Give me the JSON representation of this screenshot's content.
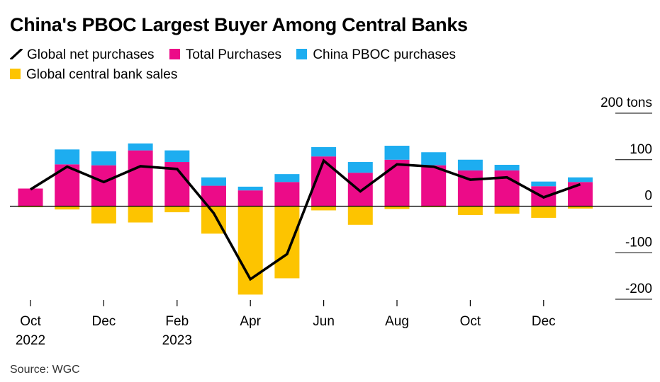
{
  "header": {
    "title": "China's PBOC Largest Buyer Among Central Banks"
  },
  "legend": [
    {
      "label": "Global net purchases",
      "kind": "line",
      "color": "#000000"
    },
    {
      "label": "Total Purchases",
      "kind": "box",
      "color": "#ec0b88"
    },
    {
      "label": "China PBOC purchases",
      "kind": "box",
      "color": "#1dadf0"
    },
    {
      "label": "Global central bank sales",
      "kind": "box",
      "color": "#fdc400"
    }
  ],
  "footer": {
    "source": "Source: WGC"
  },
  "chart_data": {
    "type": "bar",
    "categories": [
      "Oct 2022",
      "Nov 2022",
      "Dec 2022",
      "Jan 2023",
      "Feb 2023",
      "Mar 2023",
      "Apr 2023",
      "May 2023",
      "Jun 2023",
      "Jul 2023",
      "Aug 2023",
      "Sep 2023",
      "Oct 2023",
      "Nov 2023",
      "Dec 2023",
      "Jan 2024"
    ],
    "x_tick_labels": [
      {
        "index": 0,
        "lines": [
          "Oct",
          "2022"
        ]
      },
      {
        "index": 2,
        "lines": [
          "Dec"
        ]
      },
      {
        "index": 4,
        "lines": [
          "Feb",
          "2023"
        ]
      },
      {
        "index": 6,
        "lines": [
          "Apr"
        ]
      },
      {
        "index": 8,
        "lines": [
          "Jun"
        ]
      },
      {
        "index": 10,
        "lines": [
          "Aug"
        ]
      },
      {
        "index": 12,
        "lines": [
          "Oct"
        ]
      },
      {
        "index": 14,
        "lines": [
          "Dec"
        ]
      }
    ],
    "y_ticks": [
      {
        "value": 200,
        "label": "200 tons"
      },
      {
        "value": 100,
        "label": "100"
      },
      {
        "value": 0,
        "label": "0"
      },
      {
        "value": -100,
        "label": "-100"
      },
      {
        "value": -200,
        "label": "-200"
      }
    ],
    "ylim": [
      -200,
      200
    ],
    "series": [
      {
        "name": "Total Purchases",
        "stack": "positive",
        "color": "#ec0b88",
        "values": [
          38,
          90,
          88,
          120,
          95,
          44,
          34,
          52,
          107,
          72,
          100,
          88,
          77,
          77,
          43,
          52
        ]
      },
      {
        "name": "China PBOC purchases",
        "stack": "positive",
        "color": "#1dadf0",
        "values": [
          0,
          32,
          30,
          15,
          25,
          18,
          8,
          17,
          20,
          23,
          30,
          28,
          23,
          12,
          10,
          10
        ]
      },
      {
        "name": "Global central bank sales",
        "stack": "negative",
        "color": "#fdc400",
        "values": [
          -2,
          -7,
          -37,
          -35,
          -13,
          -59,
          -190,
          -155,
          -9,
          -40,
          -6,
          -2,
          -19,
          -16,
          -25,
          -5
        ]
      },
      {
        "name": "Global net purchases",
        "type": "line",
        "color": "#000000",
        "values": [
          36,
          85,
          52,
          86,
          80,
          -15,
          -157,
          -103,
          98,
          32,
          90,
          85,
          57,
          62,
          19,
          47
        ]
      }
    ],
    "grid": true
  }
}
